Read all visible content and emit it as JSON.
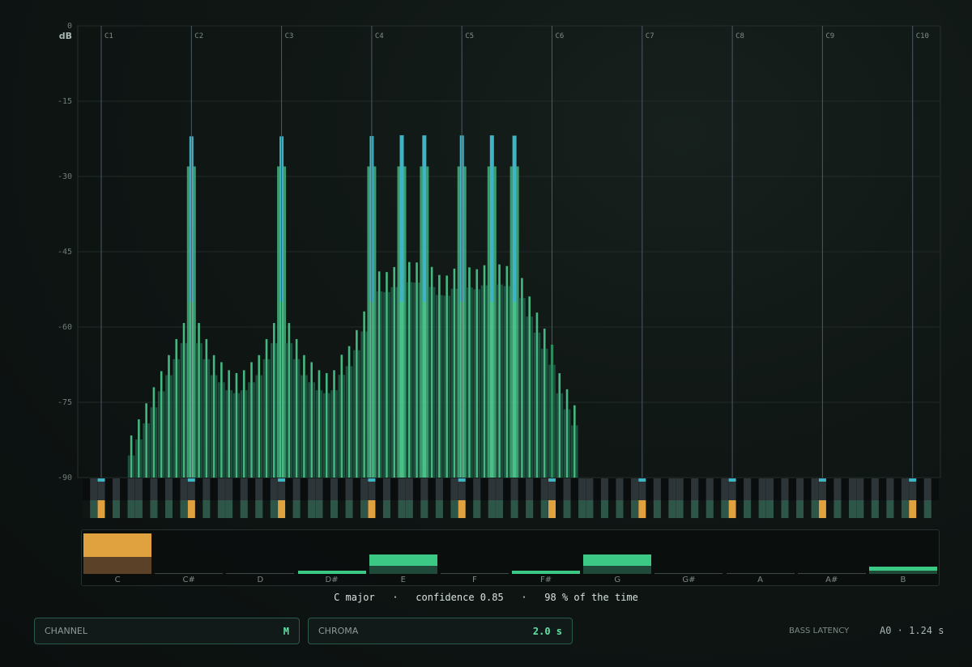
{
  "chart_data": {
    "type": "bar",
    "ylabel": "dB",
    "ylim": [
      -90,
      0
    ],
    "y_ticks": [
      "0",
      "-15",
      "-30",
      "-45",
      "-60",
      "-75",
      "-90"
    ],
    "octave_labels": [
      "C1",
      "C2",
      "C3",
      "C4",
      "C5",
      "C6",
      "C7",
      "C8",
      "C9",
      "C10"
    ],
    "x_unit": "semitone",
    "series": [
      {
        "peaks": [
          {
            "note": "C2",
            "db": -22
          },
          {
            "note": "C3",
            "db": -22
          },
          {
            "note": "C4",
            "db": -22
          },
          {
            "note": "E4",
            "db": -22
          },
          {
            "note": "G4",
            "db": -22
          },
          {
            "note": "C5",
            "db": -22
          },
          {
            "note": "E5",
            "db": -22
          },
          {
            "note": "G5",
            "db": -22
          }
        ],
        "spread_db": -56
      }
    ],
    "active_notes": [
      "C1",
      "C2",
      "C3",
      "C4",
      "C5",
      "C6",
      "C7",
      "C8",
      "C9",
      "C10"
    ],
    "keyboard_key_width": 11
  },
  "chroma": {
    "bins": [
      {
        "label": "C",
        "value": 1.0
      },
      {
        "label": "C#",
        "value": 0.0
      },
      {
        "label": "D",
        "value": 0.0
      },
      {
        "label": "D#",
        "value": 0.08
      },
      {
        "label": "E",
        "value": 0.48
      },
      {
        "label": "F",
        "value": 0.0
      },
      {
        "label": "F#",
        "value": 0.08
      },
      {
        "label": "G",
        "value": 0.48
      },
      {
        "label": "G#",
        "value": 0.0
      },
      {
        "label": "A",
        "value": 0.0
      },
      {
        "label": "A#",
        "value": 0.0
      },
      {
        "label": "B",
        "value": 0.18
      }
    ],
    "highlight": "C"
  },
  "status": {
    "key": "C major",
    "confidence": "confidence 0.85",
    "percent": "98 % of the time",
    "separator": "·"
  },
  "controls": {
    "channel_label": "CHANNEL",
    "channel_value": "M",
    "chroma_label": "CHROMA",
    "chroma_value": "2.0 s",
    "latency_label": "BASS LATENCY",
    "latency_value": "A0 · 1.24 s"
  },
  "colors": {
    "accent_green": "#4fd394",
    "peak_blue": "#3fb4c4",
    "highlight_orange": "#e0a13f",
    "dark_green": "#1f5a45"
  }
}
